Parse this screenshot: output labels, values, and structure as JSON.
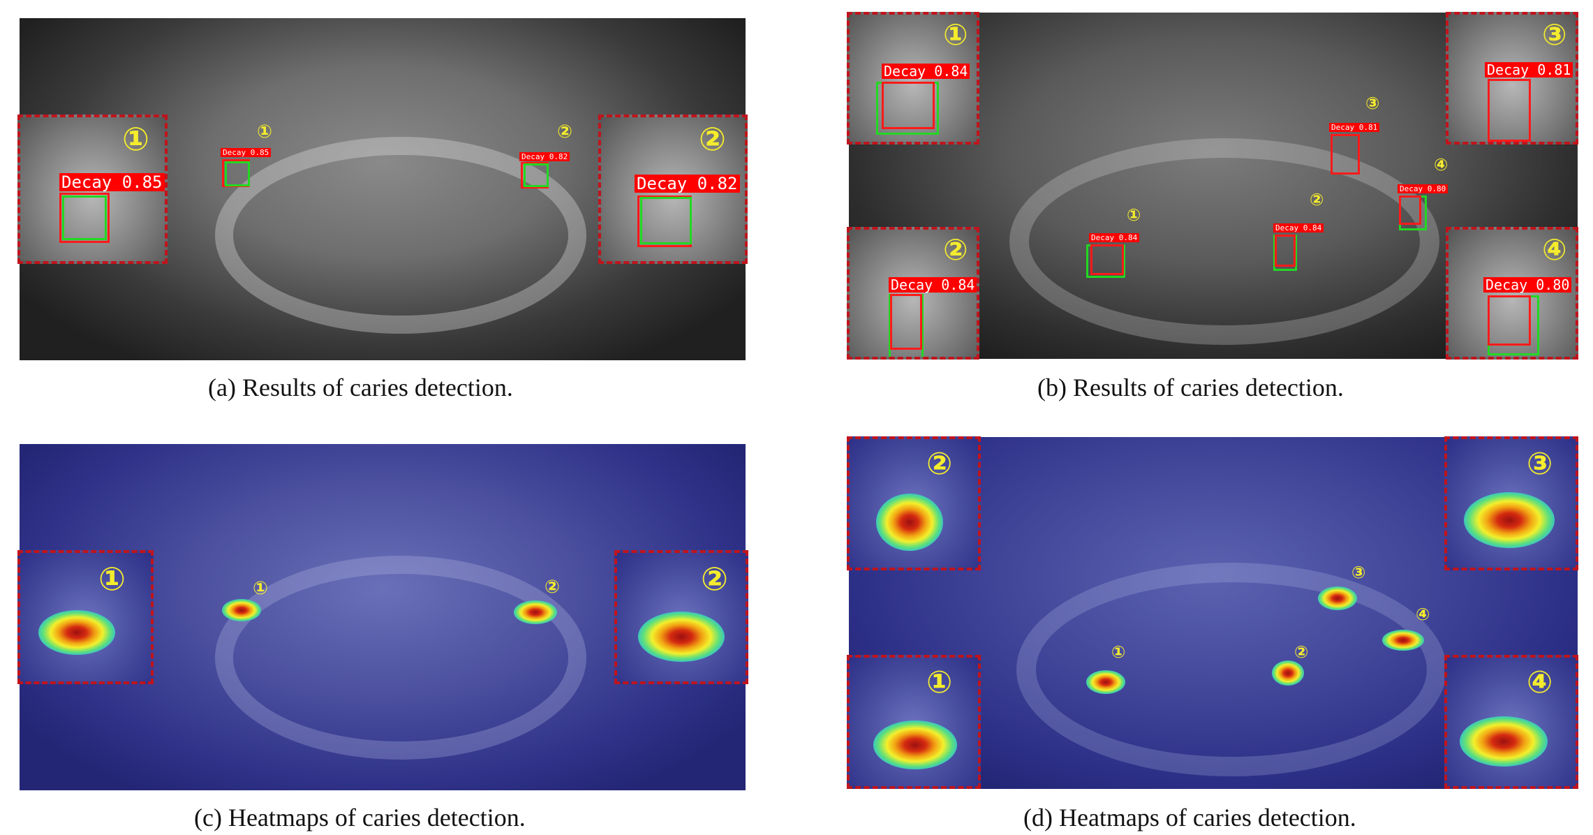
{
  "captions": {
    "a": "(a) Results of caries detection.",
    "b": "(b) Results of caries detection.",
    "c": "(c) Heatmaps of caries detection.",
    "d": "(d) Heatmaps of caries detection."
  },
  "markers": {
    "m1": "①",
    "m2": "②",
    "m3": "③",
    "m4": "④"
  },
  "detections": {
    "a1": "Decay 0.85",
    "a2": "Decay 0.82",
    "b1": "Decay 0.84",
    "b2": "Decay 0.84",
    "b3": "Decay 0.81",
    "b4": "Decay 0.80"
  },
  "colors": {
    "inset_border": "#c0141c",
    "marker": "#f4ec2c",
    "label_bg": "#ff0000",
    "box_red": "#ff1a1a",
    "box_green": "#22d822"
  }
}
